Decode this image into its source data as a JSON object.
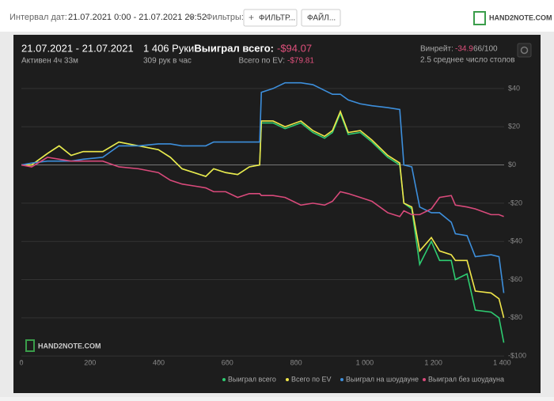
{
  "toolbar": {
    "date_label": "Интервал дат:",
    "date_value": "21.07.2021 0:00 - 21.07.2021 20:52",
    "filters_label": "Фильтры:",
    "filter_button": "ФИЛЬТР...",
    "file_button": "ФАЙЛ...",
    "logo": "HAND2NOTE.COM"
  },
  "stats": {
    "period": "21.07.2021 - 21.07.2021",
    "active": "Активен 4ч 33м",
    "hands": "1 406 Руки",
    "hands_per_hour": "309 рук в час",
    "won_label": "Выиграл всего:",
    "won_value": "-$94.07",
    "ev_label": "Всего по EV:",
    "ev_value": "-$79.81",
    "winrate_label": "Винрейт:",
    "winrate_value": "-34.9",
    "winrate_unit": "66/100",
    "tables": "2.5 среднее число столов"
  },
  "chart_data": {
    "type": "line",
    "watermark": "HAND2NOTE.COM",
    "x": [
      0,
      30,
      76,
      110,
      145,
      180,
      237,
      284,
      341,
      399,
      434,
      468,
      503,
      537,
      560,
      595,
      630,
      664,
      694,
      699,
      733,
      768,
      814,
      849,
      883,
      906,
      929,
      952,
      987,
      1021,
      1067,
      1102,
      1114,
      1137,
      1160,
      1194,
      1218,
      1252,
      1264,
      1298,
      1322,
      1368,
      1391,
      1405
    ],
    "series": [
      {
        "name": "Выиграл всего",
        "color": "#2ecc71",
        "values": [
          0,
          0,
          6,
          10,
          5,
          7,
          7,
          12,
          10,
          8,
          4,
          -2,
          -4,
          -6,
          -2,
          -4,
          -5,
          -1,
          0,
          22,
          22,
          19,
          22,
          17,
          14,
          17,
          27,
          16,
          17,
          12,
          4,
          0,
          -20,
          -23,
          -52,
          -40,
          -50,
          -50,
          -60,
          -57,
          -76,
          -77,
          -80,
          -93
        ]
      },
      {
        "name": "Всего по EV",
        "color": "#f0e64a",
        "values": [
          0,
          0,
          6,
          10,
          5,
          7,
          7,
          12,
          10,
          8,
          4,
          -2,
          -4,
          -6,
          -2,
          -4,
          -5,
          -1,
          0,
          23,
          23,
          20,
          23,
          18,
          15,
          18,
          28,
          17,
          18,
          13,
          5,
          1,
          -20,
          -22,
          -45,
          -38,
          -45,
          -47,
          -50,
          -50,
          -66,
          -67,
          -70,
          -80
        ]
      },
      {
        "name": "Выиграл на шоудауне",
        "color": "#3d8fdc",
        "values": [
          0,
          1,
          2,
          2,
          2,
          3,
          4,
          10,
          10,
          11,
          11,
          10,
          10,
          10,
          12,
          12,
          12,
          12,
          12,
          38,
          40,
          43,
          43,
          42,
          39,
          37,
          37,
          34,
          32,
          31,
          30,
          29,
          0,
          -1,
          -22,
          -25,
          -25,
          -30,
          -36,
          -37,
          -48,
          -47,
          -48,
          -67
        ]
      },
      {
        "name": "Выиграл без шоудауна",
        "color": "#d94a7b",
        "values": [
          0,
          -1,
          4,
          3,
          2,
          2,
          2,
          -1,
          -2,
          -4,
          -8,
          -10,
          -11,
          -12,
          -14,
          -14,
          -17,
          -15,
          -15,
          -16,
          -16,
          -17,
          -21,
          -20,
          -21,
          -19,
          -14,
          -15,
          -17,
          -19,
          -25,
          -27,
          -24,
          -26,
          -26,
          -23,
          -17,
          -16,
          -21,
          -22,
          -23,
          -26,
          -26,
          -27
        ]
      }
    ],
    "xlim": [
      0,
      1406
    ],
    "ylim": [
      -102,
      47
    ],
    "xticks": [
      0,
      200,
      400,
      600,
      800,
      {
        "value": 1000,
        "label": "1 000"
      },
      {
        "value": 1200,
        "label": "1 200"
      },
      {
        "value": 1400,
        "label": "1 400"
      }
    ],
    "yticks": [
      {
        "value": 40,
        "label": "$40"
      },
      {
        "value": 20,
        "label": "$20"
      },
      {
        "value": 0,
        "label": "$0"
      },
      {
        "value": -20,
        "label": "-$20"
      },
      {
        "value": -40,
        "label": "-$40"
      },
      {
        "value": -60,
        "label": "-$60"
      },
      {
        "value": -80,
        "label": "-$80"
      },
      {
        "value": -100,
        "label": "-$100"
      }
    ],
    "grid": true
  }
}
